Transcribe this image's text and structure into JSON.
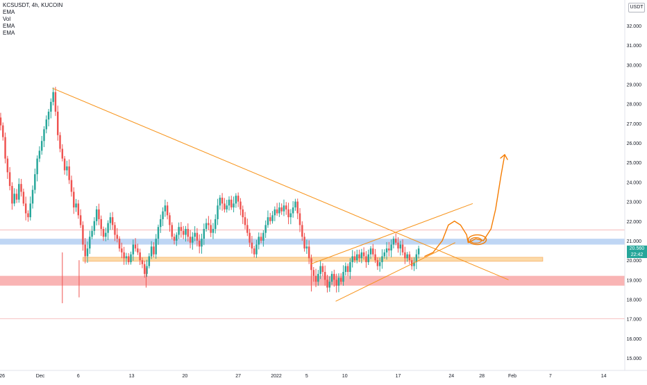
{
  "legend": {
    "symbol": "KCSUSDT, 4h, KUCOIN",
    "indicators": [
      "EMA",
      "Vol",
      "EMA",
      "EMA"
    ]
  },
  "currency": "USDT",
  "current_price": {
    "value": "20.560",
    "countdown": "22:42"
  },
  "colors": {
    "up": "#26a69a",
    "down": "#ef5350",
    "trendline": "#f7931a",
    "support_zone": "#f7a1a1",
    "resistance_zone": "#aac8f0",
    "midline": "#fcd9a8",
    "projection": "#f57c00"
  },
  "chart_data": {
    "type": "candlestick",
    "ylim": [
      14.5,
      33.5
    ],
    "y_ticks": [
      "15.000",
      "16.000",
      "17.000",
      "18.000",
      "19.000",
      "20.000",
      "21.000",
      "22.000",
      "23.000",
      "24.000",
      "25.000",
      "26.000",
      "27.000",
      "28.000",
      "29.000",
      "30.000",
      "31.000",
      "32.000"
    ],
    "y_tick_values": [
      15,
      16,
      17,
      18,
      19,
      20,
      21,
      22,
      23,
      24,
      25,
      26,
      27,
      28,
      29,
      30,
      31,
      32
    ],
    "x_ticks": [
      "26",
      "Dec",
      "6",
      "13",
      "20",
      "27",
      "2022",
      "5",
      "10",
      "17",
      "24",
      "28",
      "Feb",
      "7",
      "14"
    ],
    "x_tick_days": [
      -5,
      0,
      5,
      12,
      19,
      26,
      31,
      35,
      40,
      47,
      54,
      58,
      62,
      67,
      74
    ],
    "x_range_days": [
      -5.5,
      78
    ],
    "close_path": [
      [
        -5.5,
        27.3
      ],
      [
        -5.2,
        26.9
      ],
      [
        -4.9,
        26.3
      ],
      [
        -4.6,
        25.2
      ],
      [
        -4.3,
        24.5
      ],
      [
        -4,
        23.8
      ],
      [
        -3.7,
        22.9
      ],
      [
        -3.4,
        23.4
      ],
      [
        -3.1,
        23.1
      ],
      [
        -2.8,
        23.9
      ],
      [
        -2.5,
        23.5
      ],
      [
        -2.2,
        22.9
      ],
      [
        -1.9,
        22.4
      ],
      [
        -1.6,
        22.2
      ],
      [
        -1.3,
        22.9
      ],
      [
        -1,
        23.6
      ],
      [
        -0.7,
        24.4
      ],
      [
        -0.4,
        25.2
      ],
      [
        -0.1,
        25.6
      ],
      [
        0.2,
        26.1
      ],
      [
        0.5,
        26.7
      ],
      [
        0.8,
        27.2
      ],
      [
        1.1,
        27.6
      ],
      [
        1.4,
        28.1
      ],
      [
        1.7,
        28.6
      ],
      [
        2,
        27.6
      ],
      [
        2.3,
        26.4
      ],
      [
        2.6,
        25.7
      ],
      [
        2.9,
        25.2
      ],
      [
        3.2,
        24.6
      ],
      [
        3.5,
        24.8
      ],
      [
        3.8,
        24.1
      ],
      [
        4.1,
        23.5
      ],
      [
        4.4,
        22.7
      ],
      [
        4.7,
        22.9
      ],
      [
        5,
        22.3
      ],
      [
        5.3,
        21.8
      ],
      [
        5.6,
        20.8
      ],
      [
        5.9,
        20.2
      ],
      [
        6.2,
        20.6
      ],
      [
        6.5,
        21.2
      ],
      [
        6.8,
        21.5
      ],
      [
        7.1,
        22.0
      ],
      [
        7.4,
        22.6
      ],
      [
        7.7,
        22.1
      ],
      [
        8,
        21.6
      ],
      [
        8.3,
        21.2
      ],
      [
        8.6,
        21.4
      ],
      [
        8.9,
        21.9
      ],
      [
        9.2,
        22.2
      ],
      [
        9.5,
        21.8
      ],
      [
        9.8,
        21.3
      ],
      [
        10.1,
        21.1
      ],
      [
        10.4,
        20.6
      ],
      [
        10.7,
        20.4
      ],
      [
        11,
        20.1
      ],
      [
        11.3,
        20.2
      ],
      [
        11.6,
        19.9
      ],
      [
        11.9,
        20.3
      ],
      [
        12.2,
        20.8
      ],
      [
        12.5,
        20.6
      ],
      [
        12.8,
        20.4
      ],
      [
        13.1,
        20.0
      ],
      [
        13.4,
        19.8
      ],
      [
        13.7,
        19.3
      ],
      [
        14,
        19.7
      ],
      [
        14.3,
        20.2
      ],
      [
        14.6,
        20.7
      ],
      [
        14.9,
        20.3
      ],
      [
        15.2,
        21.1
      ],
      [
        15.5,
        21.7
      ],
      [
        15.8,
        22.1
      ],
      [
        16.1,
        22.5
      ],
      [
        16.4,
        22.8
      ],
      [
        16.7,
        22.3
      ],
      [
        17,
        21.8
      ],
      [
        17.3,
        21.2
      ],
      [
        17.6,
        21.0
      ],
      [
        17.9,
        21.3
      ],
      [
        18.2,
        21.7
      ],
      [
        18.5,
        21.5
      ],
      [
        18.8,
        21.3
      ],
      [
        19.1,
        21.6
      ],
      [
        19.4,
        21.2
      ],
      [
        19.7,
        20.9
      ],
      [
        20,
        21.2
      ],
      [
        20.3,
        21.4
      ],
      [
        20.6,
        21.0
      ],
      [
        20.9,
        20.7
      ],
      [
        21.2,
        21.1
      ],
      [
        21.5,
        21.6
      ],
      [
        21.8,
        21.9
      ],
      [
        22.1,
        21.8
      ],
      [
        22.4,
        21.4
      ],
      [
        22.7,
        21.6
      ],
      [
        23,
        22.1
      ],
      [
        23.3,
        22.8
      ],
      [
        23.6,
        23.2
      ],
      [
        23.9,
        22.9
      ],
      [
        24.2,
        22.6
      ],
      [
        24.5,
        22.8
      ],
      [
        24.8,
        23.1
      ],
      [
        25.1,
        22.7
      ],
      [
        25.4,
        22.9
      ],
      [
        25.7,
        23.3
      ],
      [
        26,
        23.0
      ],
      [
        26.3,
        22.6
      ],
      [
        26.6,
        22.2
      ],
      [
        26.9,
        21.8
      ],
      [
        27.2,
        21.4
      ],
      [
        27.5,
        20.9
      ],
      [
        27.8,
        20.6
      ],
      [
        28.1,
        20.3
      ],
      [
        28.4,
        20.8
      ],
      [
        28.7,
        21.2
      ],
      [
        29,
        21.0
      ],
      [
        29.3,
        21.4
      ],
      [
        29.6,
        21.8
      ],
      [
        29.9,
        22.2
      ],
      [
        30.2,
        22.0
      ],
      [
        30.5,
        22.3
      ],
      [
        30.8,
        22.6
      ],
      [
        31.1,
        22.4
      ],
      [
        31.4,
        22.7
      ],
      [
        31.7,
        22.5
      ],
      [
        32,
        22.8
      ],
      [
        32.3,
        22.6
      ],
      [
        32.6,
        22.2
      ],
      [
        32.9,
        22.4
      ],
      [
        33.2,
        22.7
      ],
      [
        33.5,
        23.0
      ],
      [
        33.8,
        22.4
      ],
      [
        34.1,
        21.8
      ],
      [
        34.4,
        21.2
      ],
      [
        34.7,
        20.6
      ],
      [
        35,
        20.7
      ],
      [
        35.3,
        20.1
      ],
      [
        35.6,
        19.5
      ],
      [
        35.9,
        19.2
      ],
      [
        36.2,
        18.9
      ],
      [
        36.5,
        19.3
      ],
      [
        36.8,
        19.7
      ],
      [
        37.1,
        19.4
      ],
      [
        37.4,
        19.0
      ],
      [
        37.7,
        18.6
      ],
      [
        38,
        18.9
      ],
      [
        38.3,
        19.3
      ],
      [
        38.6,
        19.0
      ],
      [
        38.9,
        18.7
      ],
      [
        39.2,
        19.1
      ],
      [
        39.5,
        18.9
      ],
      [
        39.8,
        19.4
      ],
      [
        40.1,
        19.7
      ],
      [
        40.4,
        19.4
      ],
      [
        40.7,
        19.9
      ],
      [
        41,
        20.2
      ],
      [
        41.3,
        20.0
      ],
      [
        41.6,
        20.3
      ],
      [
        41.9,
        20.1
      ],
      [
        42.2,
        20.4
      ],
      [
        42.5,
        20.2
      ],
      [
        42.8,
        19.9
      ],
      [
        43.1,
        20.3
      ],
      [
        43.4,
        20.6
      ],
      [
        43.7,
        20.3
      ],
      [
        44,
        20.0
      ],
      [
        44.3,
        19.7
      ],
      [
        44.6,
        19.9
      ],
      [
        44.9,
        20.2
      ],
      [
        45.2,
        20.4
      ],
      [
        45.5,
        20.6
      ],
      [
        45.8,
        20.5
      ],
      [
        46.1,
        20.8
      ],
      [
        46.4,
        21.1
      ],
      [
        46.7,
        20.9
      ],
      [
        47,
        20.6
      ],
      [
        47.3,
        20.8
      ],
      [
        47.6,
        20.4
      ],
      [
        47.9,
        20.1
      ],
      [
        48.2,
        20.3
      ],
      [
        48.5,
        20.0
      ],
      [
        48.8,
        19.7
      ],
      [
        49.1,
        19.9
      ],
      [
        49.4,
        20.3
      ],
      [
        49.7,
        20.6
      ]
    ],
    "wicks": [
      [
        2.9,
        17.8,
        20.4
      ],
      [
        5.1,
        18.1,
        20.0
      ],
      [
        13.9,
        18.6,
        19.6
      ],
      [
        35.6,
        18.4,
        19.3
      ]
    ],
    "drawings": {
      "descending_trendline": [
        [
          1.6,
          28.8
        ],
        [
          61.5,
          19.0
        ]
      ],
      "rising_channel_upper": [
        [
          35.5,
          19.8
        ],
        [
          56.8,
          22.9
        ]
      ],
      "rising_channel_lower": [
        [
          38.8,
          17.9
        ],
        [
          54.5,
          20.9
        ]
      ],
      "resistance_zone": [
        20.8,
        21.1
      ],
      "support_zone": [
        18.7,
        19.2
      ],
      "midline": [
        19.95,
        20.15
      ],
      "midline_days": [
        5.6,
        66.0
      ],
      "hline_top": 21.55,
      "hline_bottom": 17.0,
      "projection_curve": [
        [
          50.5,
          20.2
        ],
        [
          51.6,
          20.4
        ],
        [
          52.8,
          21.0
        ],
        [
          53.6,
          21.8
        ],
        [
          54.4,
          22.0
        ],
        [
          55.2,
          21.8
        ],
        [
          56.0,
          21.3
        ],
        [
          56.2,
          20.9
        ],
        [
          57.2,
          21.1
        ],
        [
          58.2,
          21.0
        ],
        [
          59.2,
          21.6
        ],
        [
          59.8,
          22.6
        ],
        [
          60.5,
          24.3
        ],
        [
          61.0,
          25.4
        ]
      ],
      "projection_loop_center": [
        57.4,
        21.05
      ]
    }
  }
}
